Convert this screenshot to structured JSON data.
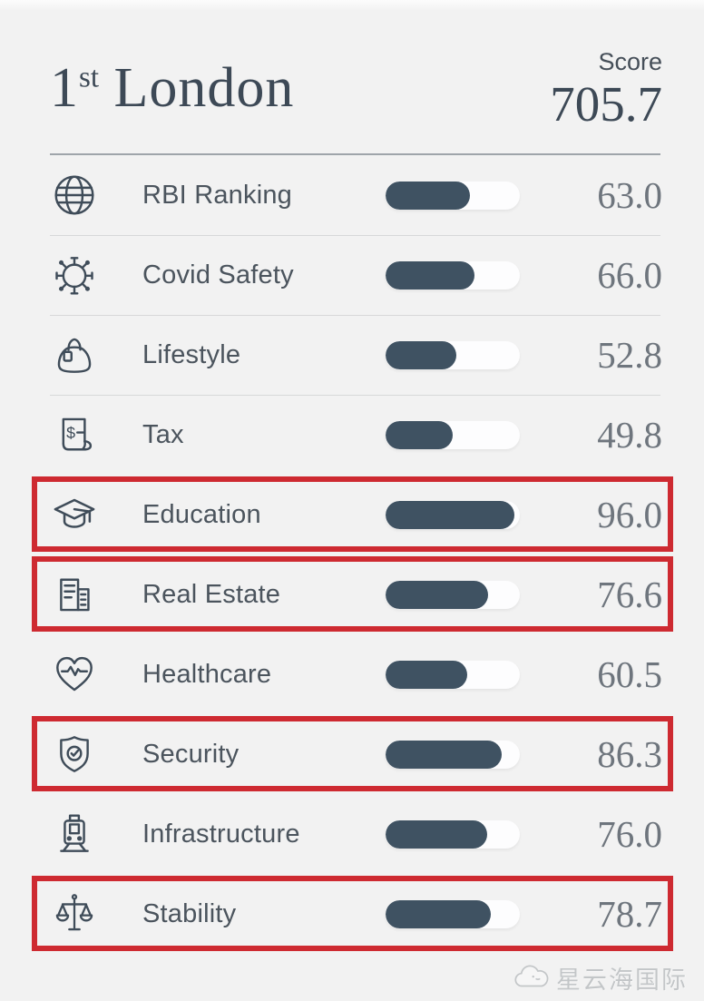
{
  "header": {
    "rank": "1",
    "rank_suffix": "st",
    "city": "London",
    "score_label": "Score",
    "score_value": "705.7"
  },
  "rows": [
    {
      "label": "RBI Ranking",
      "value": "63.0",
      "pct": 63.0,
      "icon": "globe-icon",
      "highlighted": false
    },
    {
      "label": "Covid Safety",
      "value": "66.0",
      "pct": 66.0,
      "icon": "virus-icon",
      "highlighted": false
    },
    {
      "label": "Lifestyle",
      "value": "52.8",
      "pct": 52.8,
      "icon": "handbag-icon",
      "highlighted": false
    },
    {
      "label": "Tax",
      "value": "49.8",
      "pct": 49.8,
      "icon": "receipt-icon",
      "highlighted": false
    },
    {
      "label": "Education",
      "value": "96.0",
      "pct": 96.0,
      "icon": "graduation-cap-icon",
      "highlighted": true
    },
    {
      "label": "Real Estate",
      "value": "76.6",
      "pct": 76.6,
      "icon": "buildings-icon",
      "highlighted": true
    },
    {
      "label": "Healthcare",
      "value": "60.5",
      "pct": 60.5,
      "icon": "heart-pulse-icon",
      "highlighted": false
    },
    {
      "label": "Security",
      "value": "86.3",
      "pct": 86.3,
      "icon": "shield-check-icon",
      "highlighted": true
    },
    {
      "label": "Infrastructure",
      "value": "76.0",
      "pct": 76.0,
      "icon": "train-icon",
      "highlighted": false
    },
    {
      "label": "Stability",
      "value": "78.7",
      "pct": 78.7,
      "icon": "scales-icon",
      "highlighted": true
    }
  ],
  "watermark": {
    "text": "星云海国际"
  },
  "colors": {
    "background": "#f2f2f2",
    "bar_fill": "#3f5262",
    "bar_track": "#fdfdfe",
    "heading_text": "#3d4956",
    "label_text": "#4b545d",
    "value_text": "#6e757d",
    "highlight_border": "#ce2a31",
    "divider": "#d7d8d9",
    "watermark_text": "#c3c6c8"
  },
  "chart_data": {
    "type": "bar",
    "title": "1st London",
    "subtitle": "Score 705.7",
    "orientation": "horizontal",
    "categories": [
      "RBI Ranking",
      "Covid Safety",
      "Lifestyle",
      "Tax",
      "Education",
      "Real Estate",
      "Healthcare",
      "Security",
      "Infrastructure",
      "Stability"
    ],
    "values": [
      63.0,
      66.0,
      52.8,
      49.8,
      96.0,
      76.6,
      60.5,
      86.3,
      76.0,
      78.7
    ],
    "total_score": 705.7,
    "xlim": [
      0,
      100
    ],
    "grid": false,
    "legend": false,
    "highlighted_categories": [
      "Education",
      "Real Estate",
      "Security",
      "Stability"
    ]
  }
}
